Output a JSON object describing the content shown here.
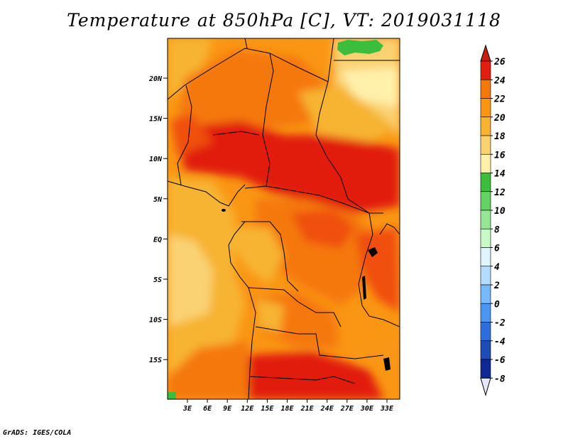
{
  "title": "Temperature at 850hPa [C], VT: 2019031118",
  "footer": "GrADS: IGES/COLA",
  "map": {
    "lon_ticks": [
      "3E",
      "6E",
      "9E",
      "12E",
      "15E",
      "18E",
      "21E",
      "24E",
      "27E",
      "30E",
      "33E"
    ],
    "lat_ticks": [
      "20N",
      "15N",
      "10N",
      "5N",
      "EQ",
      "5S",
      "10S",
      "15S"
    ]
  },
  "colorbar": {
    "levels": [
      "26",
      "24",
      "22",
      "20",
      "18",
      "16",
      "14",
      "12",
      "10",
      "8",
      "6",
      "4",
      "2",
      "0",
      "-2",
      "-4",
      "-6",
      "-8"
    ],
    "colors": [
      "#e11e0f",
      "#f0500a",
      "#f5780a",
      "#fa9614",
      "#f7b432",
      "#fad273",
      "#fff0aa",
      "#3cbe3c",
      "#64d264",
      "#96e696",
      "#c8fac8",
      "#e1f5ff",
      "#b4dcff",
      "#78b9fa",
      "#4b96f0",
      "#2d6edc",
      "#1e4bb4",
      "#0f2896",
      "#0a0a6e"
    ],
    "top_arrow_color": "#c81e0f",
    "bottom_arrow_color": "#e6e6fa"
  }
}
